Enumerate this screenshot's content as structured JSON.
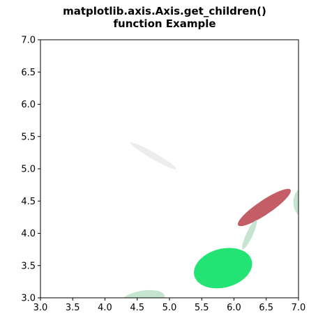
{
  "chart_data": {
    "type": "scatter",
    "title_lines": [
      "matplotlib.axis.Axis.get_children()",
      "function Example"
    ],
    "xlabel": "",
    "ylabel": "",
    "xlim": [
      3.0,
      7.0
    ],
    "ylim": [
      3.0,
      7.0
    ],
    "x_ticks": [
      "3.0",
      "3.5",
      "4.0",
      "4.5",
      "5.0",
      "5.5",
      "6.0",
      "6.5",
      "7.0"
    ],
    "y_ticks": [
      "3.0",
      "3.5",
      "4.0",
      "4.5",
      "5.0",
      "5.5",
      "6.0",
      "6.5",
      "7.0"
    ],
    "grid": false,
    "legend": "none",
    "ellipses": [
      {
        "cx": 4.75,
        "cy": 5.2,
        "width": 0.82,
        "height": 0.1,
        "angle": -30,
        "color": "#cfd1cf",
        "opacity": 0.4
      },
      {
        "cx": 6.47,
        "cy": 4.4,
        "width": 0.98,
        "height": 0.22,
        "angle": 34,
        "color": "#b5343e",
        "opacity": 0.8
      },
      {
        "cx": 7.12,
        "cy": 4.48,
        "width": 0.4,
        "height": 0.5,
        "angle": 0,
        "color": "#9ed4b0",
        "opacity": 0.6
      },
      {
        "cx": 6.24,
        "cy": 3.98,
        "width": 0.5,
        "height": 0.1,
        "angle": 65,
        "color": "#9ed4b0",
        "opacity": 0.6
      },
      {
        "cx": 5.83,
        "cy": 3.46,
        "width": 0.92,
        "height": 0.6,
        "angle": 15,
        "color": "#22e374",
        "opacity": 1.0
      },
      {
        "cx": 4.58,
        "cy": 2.97,
        "width": 0.7,
        "height": 0.28,
        "angle": 10,
        "color": "#9ed4b0",
        "opacity": 0.6
      }
    ]
  }
}
